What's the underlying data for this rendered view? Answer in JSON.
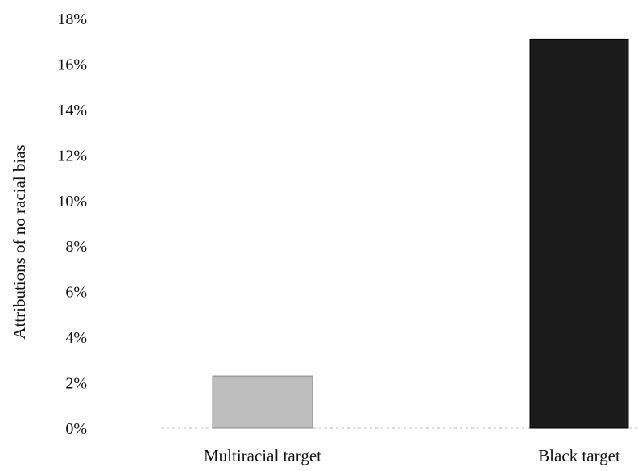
{
  "chart_data": {
    "type": "bar",
    "title": "",
    "xlabel": "",
    "ylabel": "Attributions of no racial bias",
    "categories": [
      "Multiracial target",
      "Black target"
    ],
    "values": [
      2.3,
      17.1
    ],
    "ylim": [
      0,
      18
    ],
    "yticks": [
      0,
      2,
      4,
      6,
      8,
      10,
      12,
      14,
      16,
      18
    ],
    "ytick_labels": [
      "0%",
      "2%",
      "4%",
      "6%",
      "8%",
      "10%",
      "12%",
      "14%",
      "16%",
      "18%"
    ],
    "grid": false,
    "legend": "none",
    "colors": {
      "multiracial": "#bdbdbd",
      "black": "#1c1c1c"
    }
  }
}
